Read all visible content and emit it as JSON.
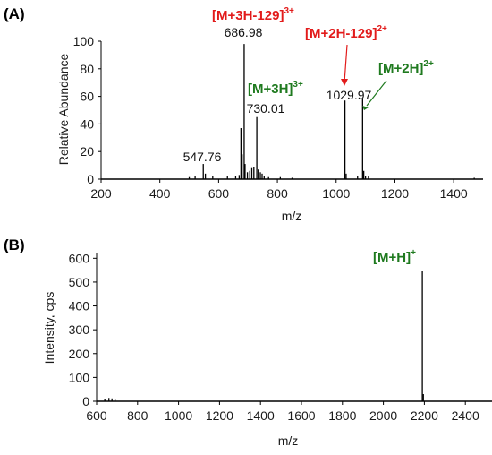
{
  "colors": {
    "red": "#e21b1b",
    "green": "#1f7a1f",
    "axis": "#000000"
  },
  "chart_data": [
    {
      "panel": "(A)",
      "type": "line",
      "xlabel": "m/z",
      "ylabel": "Relative Abundance",
      "xlim": [
        200,
        1500
      ],
      "ylim": [
        0,
        100
      ],
      "xticks": [
        200,
        400,
        600,
        800,
        1000,
        1200,
        1400
      ],
      "yticks": [
        0,
        20,
        40,
        60,
        80,
        100
      ],
      "peaks": [
        {
          "x": 500,
          "y": 1.5
        },
        {
          "x": 520,
          "y": 2.5
        },
        {
          "x": 547.76,
          "y": 11
        },
        {
          "x": 555,
          "y": 4
        },
        {
          "x": 580,
          "y": 2
        },
        {
          "x": 630,
          "y": 2
        },
        {
          "x": 658,
          "y": 2
        },
        {
          "x": 670,
          "y": 3
        },
        {
          "x": 676,
          "y": 37
        },
        {
          "x": 680,
          "y": 18
        },
        {
          "x": 686.98,
          "y": 98
        },
        {
          "x": 690,
          "y": 11
        },
        {
          "x": 698,
          "y": 5
        },
        {
          "x": 706,
          "y": 6
        },
        {
          "x": 713,
          "y": 8
        },
        {
          "x": 720,
          "y": 9
        },
        {
          "x": 730.01,
          "y": 45
        },
        {
          "x": 735,
          "y": 7
        },
        {
          "x": 742,
          "y": 5
        },
        {
          "x": 748,
          "y": 4
        },
        {
          "x": 755,
          "y": 2
        },
        {
          "x": 770,
          "y": 1.5
        },
        {
          "x": 810,
          "y": 1.5
        },
        {
          "x": 850,
          "y": 1
        },
        {
          "x": 1029.97,
          "y": 57
        },
        {
          "x": 1034,
          "y": 4
        },
        {
          "x": 1073,
          "y": 2
        },
        {
          "x": 1090,
          "y": 58
        },
        {
          "x": 1094,
          "y": 6
        },
        {
          "x": 1100,
          "y": 2
        },
        {
          "x": 1110,
          "y": 2
        },
        {
          "x": 1470,
          "y": 1
        }
      ],
      "peak_labels": [
        {
          "text": "686.98",
          "x": 686.98,
          "y": 98
        },
        {
          "text": "730.01",
          "x": 730.01,
          "y": 45
        },
        {
          "text": "1029.97",
          "x": 1029.97,
          "y": 57
        },
        {
          "text": "547.76",
          "x": 547.76,
          "y": 11
        }
      ],
      "ion_labels": [
        {
          "base": "[M+3H-129]",
          "sup": "3+",
          "color": "red"
        },
        {
          "base": "[M+2H-129]",
          "sup": "2+",
          "color": "red"
        },
        {
          "base": "[M+3H]",
          "sup": "3+",
          "color": "green"
        },
        {
          "base": "[M+2H]",
          "sup": "2+",
          "color": "green"
        }
      ]
    },
    {
      "panel": "(B)",
      "type": "line",
      "xlabel": "m/z",
      "ylabel": "Intensity, cps",
      "xlim": [
        600,
        2600
      ],
      "ylim": [
        0,
        620
      ],
      "xticks": [
        600,
        800,
        1000,
        1200,
        1400,
        1600,
        1800,
        2000,
        2200,
        2400
      ],
      "yticks": [
        0,
        100,
        200,
        300,
        400,
        500,
        600
      ],
      "peaks": [
        {
          "x": 640,
          "y": 10
        },
        {
          "x": 660,
          "y": 14
        },
        {
          "x": 675,
          "y": 12
        },
        {
          "x": 690,
          "y": 8
        },
        {
          "x": 2190,
          "y": 545
        },
        {
          "x": 2195,
          "y": 30
        }
      ],
      "ion_labels": [
        {
          "base": "[M+H]",
          "sup": "+",
          "color": "green"
        }
      ]
    }
  ]
}
